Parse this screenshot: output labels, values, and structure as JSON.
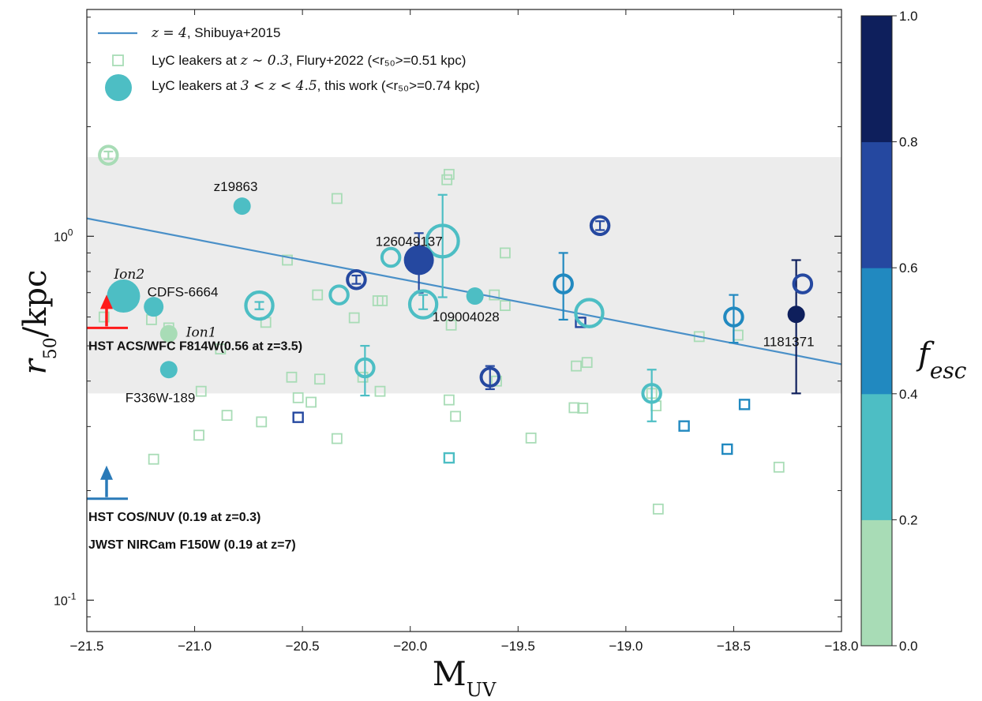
{
  "chart_data": {
    "type": "scatter",
    "xlabel_base": "M",
    "xlabel_sub": "UV",
    "ylabel_main": "r",
    "ylabel_sub": "50",
    "ylabel_tail": "/kpc",
    "xlim": [
      -21.5,
      -18.0
    ],
    "ylim": [
      0.082,
      4.2
    ],
    "yscale": "log",
    "x_ticks": [
      -21.5,
      -21.0,
      -20.5,
      -20.0,
      -19.5,
      -19.0,
      -18.5,
      -18.0
    ],
    "x_tick_labels": [
      "−21.5",
      "−21.0",
      "−20.5",
      "−20.0",
      "−19.5",
      "−19.0",
      "−18.5",
      "−18.0"
    ],
    "y_major_tick_labels": [
      {
        "value": 1.0,
        "base": "10",
        "exp": "0"
      },
      {
        "value": 0.1,
        "base": "10",
        "exp": "-1"
      }
    ],
    "shaded_band": {
      "ymin": 0.37,
      "ymax": 1.65
    },
    "fit_line": {
      "x": [
        -21.5,
        -18.0
      ],
      "y": [
        1.12,
        0.445
      ],
      "color": "#4a90c8"
    },
    "legend": {
      "position": "top-left",
      "entries": [
        {
          "marker": "line",
          "pre": "",
          "math": "z = 4",
          "post": ", Shibuya+2015"
        },
        {
          "marker": "open-square",
          "pre": "LyC leakers at ",
          "math": "z ∼ 0.3",
          "post": ", Flury+2022 (<r₅₀>=0.51 kpc)"
        },
        {
          "marker": "filled-circle",
          "pre": "LyC leakers at ",
          "math": "3 < z < 4.5",
          "post": ", this work (<r₅₀>=0.74 kpc)"
        }
      ]
    },
    "colorbar": {
      "label": "f",
      "label_sub": "esc",
      "ticks": [
        "0.0",
        "0.2",
        "0.4",
        "0.6",
        "0.8",
        "1.0"
      ],
      "colors": [
        "#a8dcb6",
        "#4dbec4",
        "#2189c0",
        "#2548a0",
        "#0e1f5c"
      ]
    },
    "flury_squares": [
      {
        "x": -21.42,
        "y": 0.6,
        "f": 0.05
      },
      {
        "x": -21.2,
        "y": 0.59,
        "f": 0.05
      },
      {
        "x": -21.12,
        "y": 0.56,
        "f": 0.05
      },
      {
        "x": -21.19,
        "y": 0.244,
        "f": 0.05
      },
      {
        "x": -20.97,
        "y": 0.375,
        "f": 0.05
      },
      {
        "x": -20.98,
        "y": 0.284,
        "f": 0.05
      },
      {
        "x": -20.88,
        "y": 0.49,
        "f": 0.05
      },
      {
        "x": -20.85,
        "y": 0.322,
        "f": 0.05
      },
      {
        "x": -20.67,
        "y": 0.58,
        "f": 0.05
      },
      {
        "x": -20.69,
        "y": 0.309,
        "f": 0.05
      },
      {
        "x": -20.57,
        "y": 0.86,
        "f": 0.05
      },
      {
        "x": -20.55,
        "y": 0.41,
        "f": 0.05
      },
      {
        "x": -20.52,
        "y": 0.36,
        "f": 0.05
      },
      {
        "x": -20.46,
        "y": 0.35,
        "f": 0.05
      },
      {
        "x": -20.43,
        "y": 0.69,
        "f": 0.05
      },
      {
        "x": -20.42,
        "y": 0.405,
        "f": 0.05
      },
      {
        "x": -20.34,
        "y": 1.27,
        "f": 0.05
      },
      {
        "x": -20.34,
        "y": 0.278,
        "f": 0.05
      },
      {
        "x": -20.26,
        "y": 0.597,
        "f": 0.05
      },
      {
        "x": -20.22,
        "y": 0.41,
        "f": 0.05
      },
      {
        "x": -20.15,
        "y": 0.665,
        "f": 0.05
      },
      {
        "x": -20.13,
        "y": 0.665,
        "f": 0.05
      },
      {
        "x": -20.14,
        "y": 0.375,
        "f": 0.05
      },
      {
        "x": -19.83,
        "y": 1.43,
        "f": 0.05
      },
      {
        "x": -19.82,
        "y": 1.48,
        "f": 0.05
      },
      {
        "x": -19.81,
        "y": 0.57,
        "f": 0.05
      },
      {
        "x": -19.82,
        "y": 0.355,
        "f": 0.05
      },
      {
        "x": -19.79,
        "y": 0.32,
        "f": 0.05
      },
      {
        "x": -19.61,
        "y": 0.69,
        "f": 0.05
      },
      {
        "x": -19.6,
        "y": 0.4,
        "f": 0.05
      },
      {
        "x": -19.56,
        "y": 0.9,
        "f": 0.05
      },
      {
        "x": -19.56,
        "y": 0.645,
        "f": 0.05
      },
      {
        "x": -19.44,
        "y": 0.279,
        "f": 0.05
      },
      {
        "x": -19.23,
        "y": 0.44,
        "f": 0.05
      },
      {
        "x": -19.24,
        "y": 0.338,
        "f": 0.05
      },
      {
        "x": -19.2,
        "y": 0.337,
        "f": 0.05
      },
      {
        "x": -19.18,
        "y": 0.45,
        "f": 0.05
      },
      {
        "x": -18.85,
        "y": 0.178,
        "f": 0.05
      },
      {
        "x": -18.86,
        "y": 0.342,
        "f": 0.05
      },
      {
        "x": -18.88,
        "y": 0.37,
        "f": 0.05
      },
      {
        "x": -18.66,
        "y": 0.53,
        "f": 0.05
      },
      {
        "x": -18.48,
        "y": 0.535,
        "f": 0.05
      },
      {
        "x": -18.29,
        "y": 0.232,
        "f": 0.05
      },
      {
        "x": -20.52,
        "y": 0.318,
        "f": 0.75
      },
      {
        "x": -19.21,
        "y": 0.58,
        "f": 0.6
      },
      {
        "x": -19.82,
        "y": 0.246,
        "f": 0.32
      },
      {
        "x": -18.73,
        "y": 0.301,
        "f": 0.5
      },
      {
        "x": -18.53,
        "y": 0.26,
        "f": 0.5
      },
      {
        "x": -18.45,
        "y": 0.345,
        "f": 0.5
      }
    ],
    "this_work_filled": [
      {
        "x": -21.33,
        "y": 0.685,
        "f": 0.3,
        "size": "xl",
        "label": "Ion2",
        "label_math": true
      },
      {
        "x": -21.19,
        "y": 0.64,
        "f": 0.35,
        "size": "m",
        "label": "CDFS-6664",
        "label_math": false
      },
      {
        "x": -21.12,
        "y": 0.54,
        "f": 0.1,
        "size": "s",
        "label": "Ion1",
        "label_math": true
      },
      {
        "x": -21.12,
        "y": 0.43,
        "f": 0.3,
        "size": "s",
        "label": "F336W-189",
        "label_math": false
      },
      {
        "x": -20.78,
        "y": 1.21,
        "f": 0.3,
        "size": "s",
        "label": "z19863",
        "label_math": false
      },
      {
        "x": -19.96,
        "y": 0.86,
        "f": 0.73,
        "size": "l",
        "label": "126049137",
        "label_math": false,
        "err": [
          0.7,
          1.02
        ]
      },
      {
        "x": -19.7,
        "y": 0.685,
        "f": 0.3,
        "size": "s",
        "label": "109004028",
        "label_math": false
      },
      {
        "x": -18.21,
        "y": 0.61,
        "f": 0.9,
        "size": "s",
        "label": "1181371",
        "label_math": false,
        "err": [
          0.37,
          0.86
        ]
      }
    ],
    "this_work_rings": [
      {
        "x": -21.4,
        "y": 1.67,
        "f": 0.1,
        "size": "m",
        "err": [
          1.63,
          1.71
        ]
      },
      {
        "x": -20.7,
        "y": 0.645,
        "f": 0.3,
        "size": "l",
        "err": [
          0.63,
          0.66
        ]
      },
      {
        "x": -20.33,
        "y": 0.69,
        "f": 0.3,
        "size": "m"
      },
      {
        "x": -20.25,
        "y": 0.76,
        "f": 0.6,
        "size": "m",
        "err": [
          0.74,
          0.78
        ]
      },
      {
        "x": -20.21,
        "y": 0.435,
        "f": 0.3,
        "size": "m",
        "err": [
          0.365,
          0.5
        ]
      },
      {
        "x": -20.09,
        "y": 0.875,
        "f": 0.3,
        "size": "m"
      },
      {
        "x": -19.94,
        "y": 0.65,
        "f": 0.3,
        "size": "l",
        "err": [
          0.63,
          0.69
        ]
      },
      {
        "x": -19.85,
        "y": 0.97,
        "f": 0.3,
        "size": "xl",
        "err": [
          0.68,
          1.3
        ]
      },
      {
        "x": -19.63,
        "y": 0.41,
        "f": 0.65,
        "size": "m",
        "err": [
          0.38,
          0.44
        ]
      },
      {
        "x": -19.29,
        "y": 0.74,
        "f": 0.5,
        "size": "m",
        "err": [
          0.59,
          0.9
        ]
      },
      {
        "x": -19.17,
        "y": 0.615,
        "f": 0.3,
        "size": "l"
      },
      {
        "x": -19.12,
        "y": 1.07,
        "f": 0.65,
        "size": "m",
        "err": [
          1.04,
          1.1
        ]
      },
      {
        "x": -18.88,
        "y": 0.37,
        "f": 0.3,
        "size": "m",
        "err": [
          0.31,
          0.43
        ]
      },
      {
        "x": -18.5,
        "y": 0.6,
        "f": 0.5,
        "size": "m",
        "err": [
          0.51,
          0.69
        ]
      },
      {
        "x": -18.18,
        "y": 0.74,
        "f": 0.65,
        "size": "m"
      }
    ],
    "limits": [
      {
        "y": 0.56,
        "color": "#ff1a1a",
        "line1": "HST ACS/WFC F814W(0.56 at z=3.5)",
        "line2": ""
      },
      {
        "y": 0.19,
        "color": "#2a7ab8",
        "line1": "HST COS/NUV (0.19 at z=0.3)",
        "line2": "JWST NIRCam F150W (0.19 at z=7)"
      }
    ]
  }
}
